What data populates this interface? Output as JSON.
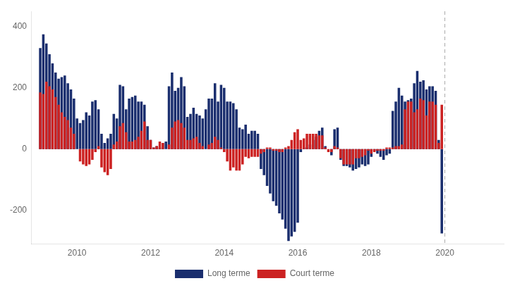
{
  "chart_data": {
    "type": "bar",
    "x": [
      2009,
      2009.0833333333,
      2009.1666666667,
      2009.25,
      2009.3333333333,
      2009.4166666667,
      2009.5,
      2009.5833333333,
      2009.6666666667,
      2009.75,
      2009.8333333333,
      2009.9166666667,
      2010,
      2010.0833333333,
      2010.1666666667,
      2010.25,
      2010.3333333333,
      2010.4166666667,
      2010.5,
      2010.5833333333,
      2010.6666666667,
      2010.75,
      2010.8333333333,
      2010.9166666667,
      2011,
      2011.0833333333,
      2011.1666666667,
      2011.25,
      2011.3333333333,
      2011.4166666667,
      2011.5,
      2011.5833333333,
      2011.6666666667,
      2011.75,
      2011.8333333333,
      2011.9166666667,
      2012,
      2012.0833333333,
      2012.1666666667,
      2012.25,
      2012.3333333333,
      2012.4166666667,
      2012.5,
      2012.5833333333,
      2012.6666666667,
      2012.75,
      2012.8333333333,
      2012.9166666667,
      2013,
      2013.0833333333,
      2013.1666666667,
      2013.25,
      2013.3333333333,
      2013.4166666667,
      2013.5,
      2013.5833333333,
      2013.6666666667,
      2013.75,
      2013.8333333333,
      2013.9166666667,
      2014,
      2014.0833333333,
      2014.1666666667,
      2014.25,
      2014.3333333333,
      2014.4166666667,
      2014.5,
      2014.5833333333,
      2014.6666666667,
      2014.75,
      2014.8333333333,
      2014.9166666667,
      2015,
      2015.0833333333,
      2015.1666666667,
      2015.25,
      2015.3333333333,
      2015.4166666667,
      2015.5,
      2015.5833333333,
      2015.6666666667,
      2015.75,
      2015.8333333333,
      2015.9166666667,
      2016,
      2016.0833333333,
      2016.1666666667,
      2016.25,
      2016.3333333333,
      2016.4166666667,
      2016.5,
      2016.5833333333,
      2016.6666666667,
      2016.75,
      2016.8333333333,
      2016.9166666667,
      2017,
      2017.0833333333,
      2017.1666666667,
      2017.25,
      2017.3333333333,
      2017.4166666667,
      2017.5,
      2017.5833333333,
      2017.6666666667,
      2017.75,
      2017.8333333333,
      2017.9166666667,
      2018,
      2018.0833333333,
      2018.1666666667,
      2018.25,
      2018.3333333333,
      2018.4166666667,
      2018.5,
      2018.5833333333,
      2018.6666666667,
      2018.75,
      2018.8333333333,
      2018.9166666667,
      2019,
      2019.0833333333,
      2019.1666666667,
      2019.25,
      2019.3333333333,
      2019.4166666667,
      2019.5,
      2019.5833333333,
      2019.6666666667,
      2019.75,
      2019.8333333333,
      2019.9166666667
    ],
    "series": [
      {
        "name": "Long terme",
        "color": "#1a2e6e",
        "values": [
          330,
          375,
          345,
          310,
          280,
          250,
          230,
          235,
          240,
          215,
          195,
          165,
          100,
          85,
          95,
          120,
          110,
          155,
          160,
          130,
          50,
          20,
          35,
          50,
          115,
          100,
          210,
          205,
          130,
          165,
          170,
          175,
          155,
          155,
          145,
          75,
          30,
          5,
          10,
          5,
          20,
          25,
          205,
          250,
          190,
          200,
          235,
          205,
          105,
          115,
          135,
          115,
          110,
          100,
          130,
          165,
          165,
          215,
          155,
          210,
          200,
          155,
          155,
          150,
          130,
          70,
          65,
          80,
          50,
          60,
          60,
          50,
          -65,
          -85,
          -120,
          -145,
          -170,
          -185,
          -210,
          -230,
          -260,
          -300,
          -285,
          -270,
          -240,
          -10,
          5,
          5,
          15,
          30,
          40,
          60,
          70,
          10,
          0,
          -20,
          65,
          70,
          -35,
          -55,
          -55,
          -60,
          -70,
          -65,
          -60,
          -50,
          -55,
          -50,
          -25,
          -5,
          -15,
          -25,
          -35,
          -20,
          -15,
          125,
          155,
          200,
          175,
          155,
          160,
          165,
          215,
          255,
          220,
          225,
          195,
          205,
          205,
          190,
          30,
          -275
        ]
      },
      {
        "name": "Court terme",
        "color": "#cc2222",
        "values": [
          185,
          180,
          220,
          205,
          195,
          170,
          145,
          120,
          105,
          95,
          70,
          50,
          0,
          -40,
          -50,
          -55,
          -50,
          -35,
          -10,
          10,
          -60,
          -75,
          -85,
          -65,
          15,
          25,
          75,
          85,
          55,
          25,
          25,
          30,
          40,
          60,
          90,
          30,
          30,
          5,
          10,
          25,
          20,
          0,
          15,
          70,
          90,
          95,
          85,
          70,
          30,
          30,
          35,
          40,
          20,
          10,
          0,
          15,
          20,
          40,
          30,
          5,
          -10,
          -40,
          -70,
          -60,
          -70,
          -70,
          -50,
          -25,
          -30,
          -25,
          -25,
          -25,
          -15,
          -10,
          5,
          5,
          -5,
          -5,
          -10,
          -10,
          5,
          10,
          30,
          55,
          65,
          30,
          35,
          50,
          50,
          50,
          50,
          45,
          45,
          5,
          -10,
          -10,
          10,
          5,
          -30,
          -50,
          -50,
          -50,
          -50,
          -30,
          -30,
          -25,
          -20,
          -5,
          -15,
          -10,
          -5,
          -5,
          -5,
          5,
          5,
          5,
          10,
          10,
          15,
          130,
          155,
          155,
          120,
          130,
          165,
          160,
          110,
          155,
          155,
          145,
          20,
          145
        ]
      }
    ],
    "xlim": [
      2008.75,
      2021.6
    ],
    "xticks": [
      2010,
      2012,
      2014,
      2016,
      2018,
      2020
    ],
    "ylim": [
      -310,
      450
    ],
    "yticks": [
      -200,
      0,
      200,
      400
    ],
    "vline_x": 2020.0,
    "grid": false,
    "legend": "bottom",
    "stacked": false
  }
}
